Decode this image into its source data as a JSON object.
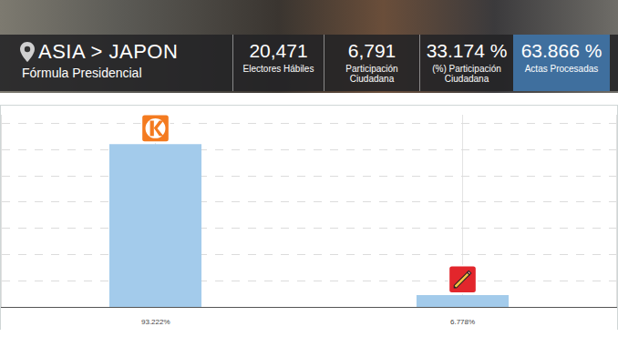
{
  "header": {
    "location": "ASIA > JAPON",
    "subtitle": "Fórmula Presidencial",
    "stats": [
      {
        "value": "20,471",
        "label": "Electores Hábiles"
      },
      {
        "value": "6,791",
        "label": "Participación Ciudadana"
      },
      {
        "value": "33.174 %",
        "label": "(%) Participación Ciudadana"
      },
      {
        "value": "63.866 %",
        "label": "Actas Procesadas"
      }
    ]
  },
  "chart_data": {
    "type": "bar",
    "categories": [
      null,
      null
    ],
    "values": [
      93.222,
      6.778
    ],
    "value_labels": [
      "93.222%",
      "6.778%"
    ],
    "data_labels": true,
    "color": "#a3cbeb",
    "ylim": [
      0,
      110
    ],
    "yticks": [
      0,
      15,
      30,
      45,
      60,
      75,
      90,
      105
    ],
    "grid": true,
    "tick_labels": false
  }
}
